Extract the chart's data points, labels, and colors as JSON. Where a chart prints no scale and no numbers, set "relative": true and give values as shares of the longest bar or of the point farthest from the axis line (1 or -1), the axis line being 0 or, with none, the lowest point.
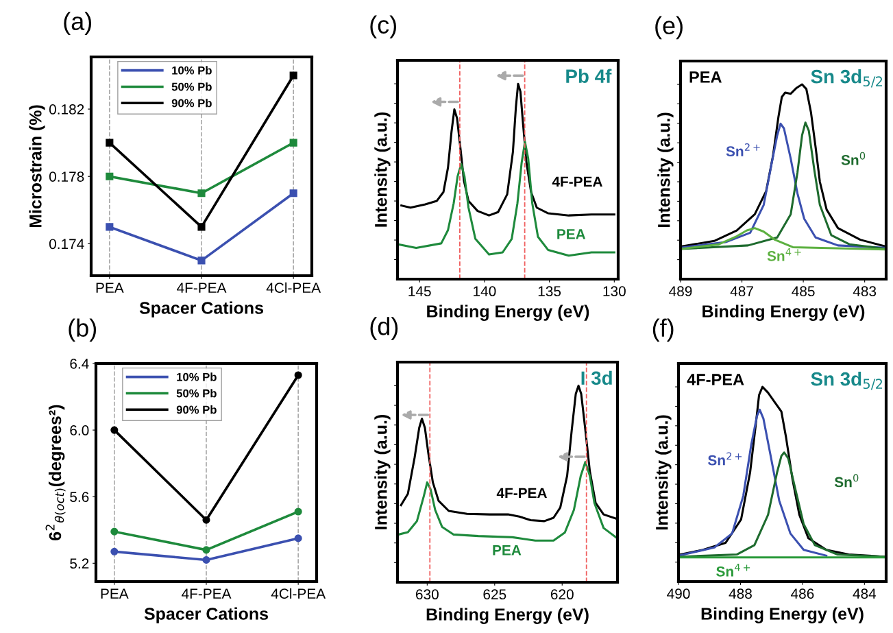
{
  "chart_data": [
    {
      "type": "line",
      "title": "(a)",
      "xlabel": "Spacer Cations",
      "ylabel": "Microstrain (%)",
      "categories": [
        "PEA",
        "4F-PEA",
        "4Cl-PEA"
      ],
      "ylim": [
        0.1721,
        0.1851
      ],
      "yticks": [
        0.174,
        0.178,
        0.182
      ],
      "grid": "x",
      "legend": "top left",
      "marker": "square",
      "series": [
        {
          "name": "10% Pb",
          "color": "#3b50b0",
          "values": [
            0.175,
            0.173,
            0.177
          ]
        },
        {
          "name": "50% Pb",
          "color": "#1e8a3c",
          "values": [
            0.178,
            0.177,
            0.18
          ]
        },
        {
          "name": "90% Pb",
          "color": "#000000",
          "values": [
            0.18,
            0.175,
            0.184
          ]
        }
      ]
    },
    {
      "type": "line",
      "title": "(c)",
      "xlabel": "Binding Energy (eV)",
      "ylabel": "Intensity (a.u.)",
      "relative": true,
      "xlim": [
        146.7,
        129.7
      ],
      "xticks": [
        145,
        140,
        135,
        130
      ],
      "tick_labels": "x",
      "annotations": [
        "Pb 4f"
      ],
      "ref_lines": [
        {
          "axis": "x",
          "value": 141.9,
          "color": "#f06060",
          "line_style": "dashed"
        },
        {
          "axis": "x",
          "value": 136.9,
          "color": "#f06060",
          "line_style": "dashed"
        }
      ],
      "series": [
        {
          "name": "4F-PEA",
          "color": "#000000",
          "x": [
            146.4,
            145.7,
            144.56,
            143.68,
            143.16,
            142.81,
            142.54,
            142.32,
            142.11,
            141.84,
            141.58,
            141.23,
            140.53,
            139.65,
            138.95,
            138.25,
            137.81,
            137.58,
            137.41,
            137.23,
            137.02,
            136.76,
            136.41,
            135.97,
            135.09,
            133.51,
            131.76,
            130.0
          ],
          "values": [
            0.377,
            0.366,
            0.383,
            0.4,
            0.446,
            0.571,
            0.754,
            0.869,
            0.823,
            0.663,
            0.503,
            0.4,
            0.349,
            0.326,
            0.343,
            0.434,
            0.651,
            0.88,
            1.0,
            0.96,
            0.789,
            0.594,
            0.446,
            0.366,
            0.337,
            0.326,
            0.331,
            0.331
          ]
        },
        {
          "name": "PEA",
          "color": "#1e8a3c",
          "x": [
            146.58,
            145.26,
            143.33,
            142.81,
            142.37,
            142.07,
            141.79,
            141.54,
            141.23,
            140.7,
            139.65,
            138.6,
            137.9,
            137.46,
            137.14,
            136.88,
            136.63,
            136.32,
            135.88,
            135.09,
            133.51,
            131.76,
            130.0
          ],
          "values": [
            0.177,
            0.16,
            0.183,
            0.251,
            0.389,
            0.526,
            0.589,
            0.526,
            0.366,
            0.206,
            0.126,
            0.137,
            0.206,
            0.389,
            0.594,
            0.703,
            0.617,
            0.389,
            0.217,
            0.149,
            0.12,
            0.137,
            0.137
          ]
        }
      ]
    },
    {
      "type": "line",
      "title": "(e)",
      "xlabel": "Binding Energy (eV)",
      "ylabel": "Intensity (a.u.)",
      "relative": true,
      "xlim": [
        489.0,
        482.3
      ],
      "xticks": [
        489,
        487,
        485,
        483
      ],
      "tick_labels": "x",
      "annotations": [
        "PEA",
        "Sn 3d$_{5/2}$"
      ],
      "series": [
        {
          "color": "#000000",
          "x": [
            489.0,
            487.9,
            487.17,
            486.58,
            486.21,
            485.99,
            485.81,
            485.7,
            485.59,
            485.41,
            485.22,
            485.04,
            484.9,
            484.75,
            484.6,
            484.46,
            484.24,
            483.87,
            483.14,
            482.3
          ],
          "values": [
            0.167,
            0.196,
            0.25,
            0.333,
            0.452,
            0.631,
            0.833,
            0.935,
            0.958,
            0.952,
            0.982,
            1.0,
            0.976,
            0.857,
            0.679,
            0.5,
            0.357,
            0.262,
            0.202,
            0.167
          ]
        },
        {
          "name": "Sn$^{2+}$",
          "color": "#3b50b0",
          "x": [
            489.0,
            487.53,
            486.73,
            486.29,
            486.03,
            485.85,
            485.74,
            485.63,
            485.41,
            485.19,
            484.97,
            484.6,
            483.87,
            482.3
          ],
          "values": [
            0.161,
            0.19,
            0.238,
            0.381,
            0.595,
            0.738,
            0.798,
            0.774,
            0.619,
            0.44,
            0.31,
            0.214,
            0.173,
            0.161
          ]
        },
        {
          "name": "Sn$^{0}$",
          "color": "#1e6b2e",
          "x": [
            489.0,
            486.8,
            485.85,
            485.41,
            485.19,
            485.04,
            484.93,
            484.82,
            484.64,
            484.46,
            484.09,
            483.5,
            482.3
          ],
          "values": [
            0.155,
            0.173,
            0.214,
            0.333,
            0.548,
            0.738,
            0.804,
            0.762,
            0.56,
            0.381,
            0.226,
            0.179,
            0.155
          ]
        },
        {
          "name": "Sn$^{4+}$",
          "color": "#5cb040",
          "x": [
            489.0,
            487.75,
            487.17,
            486.84,
            486.58,
            486.29,
            485.92,
            485.34,
            482.3
          ],
          "values": [
            0.155,
            0.179,
            0.22,
            0.25,
            0.262,
            0.244,
            0.202,
            0.164,
            0.152
          ]
        }
      ]
    },
    {
      "type": "line",
      "title": "(b)",
      "xlabel": "Spacer Cations",
      "ylabel": "6$^{2}$$_{θ(oct)}$(degrees²)",
      "categories": [
        "PEA",
        "4F-PEA",
        "4Cl-PEA"
      ],
      "ylim": [
        5.09,
        6.4
      ],
      "yticks": [
        {
          "value": 5.2,
          "label": "5.2"
        },
        {
          "value": 5.6,
          "label": "5.6"
        },
        {
          "value": 6.0,
          "label": "6.0"
        },
        {
          "value": 6.4,
          "label": "6.4"
        }
      ],
      "grid": "x",
      "legend": "top left",
      "marker": "circle",
      "series": [
        {
          "name": "10% Pb",
          "color": "#3b50b0",
          "values": [
            5.27,
            5.22,
            5.35
          ]
        },
        {
          "name": "50% Pb",
          "color": "#1e8a3c",
          "values": [
            5.39,
            5.28,
            5.51
          ]
        },
        {
          "name": "90% Pb",
          "color": "#000000",
          "values": [
            6.0,
            5.46,
            6.33
          ]
        }
      ]
    },
    {
      "type": "line",
      "title": "(d)",
      "xlabel": "Binding Energy (eV)",
      "ylabel": "Intensity (a.u.)",
      "relative": true,
      "xlim": [
        632.2,
        615.9
      ],
      "xticks": [
        630,
        625,
        620
      ],
      "tick_labels": "x",
      "annotations": [
        "I 3d"
      ],
      "ref_lines": [
        {
          "axis": "x",
          "value": 629.8,
          "color": "#f06060",
          "line_style": "dashed"
        },
        {
          "axis": "x",
          "value": 618.2,
          "color": "#f06060",
          "line_style": "dashed"
        }
      ],
      "series": [
        {
          "name": "4F-PEA",
          "color": "#000000",
          "x": [
            631.94,
            631.43,
            630.93,
            630.59,
            630.39,
            630.17,
            629.92,
            629.58,
            629.16,
            628.4,
            627.05,
            625.36,
            624.01,
            623.17,
            622.33,
            621.32,
            620.64,
            620.14,
            619.63,
            619.29,
            618.99,
            618.79,
            618.59,
            618.28,
            617.95,
            617.52,
            616.93,
            615.92
          ],
          "values": [
            0.392,
            0.45,
            0.635,
            0.786,
            0.832,
            0.786,
            0.658,
            0.508,
            0.415,
            0.363,
            0.348,
            0.345,
            0.345,
            0.334,
            0.316,
            0.311,
            0.328,
            0.38,
            0.542,
            0.774,
            0.959,
            1.0,
            0.959,
            0.774,
            0.565,
            0.403,
            0.345,
            0.322
          ]
        },
        {
          "name": "PEA",
          "color": "#1e8a3c",
          "x": [
            632.11,
            631.43,
            630.76,
            630.25,
            630.0,
            629.75,
            629.41,
            628.9,
            628.06,
            626.21,
            623.68,
            621.99,
            620.64,
            619.8,
            619.13,
            618.62,
            618.28,
            617.95,
            617.61,
            616.93,
            615.92
          ],
          "values": [
            0.243,
            0.255,
            0.311,
            0.438,
            0.508,
            0.473,
            0.368,
            0.282,
            0.243,
            0.235,
            0.229,
            0.212,
            0.212,
            0.253,
            0.368,
            0.542,
            0.612,
            0.542,
            0.403,
            0.276,
            0.224
          ]
        }
      ]
    },
    {
      "type": "line",
      "title": "(f)",
      "xlabel": "Binding Energy (eV)",
      "ylabel": "Intensity (a.u.)",
      "relative": true,
      "xlim": [
        490.0,
        483.3
      ],
      "xticks": [
        490,
        488,
        486,
        484
      ],
      "tick_labels": "x",
      "annotations": [
        "4F-PEA",
        "Sn 3d$_{5/2}$"
      ],
      "series": [
        {
          "color": "#000000",
          "x": [
            489.93,
            489.21,
            488.48,
            487.98,
            487.69,
            487.51,
            487.4,
            487.29,
            487.11,
            486.9,
            486.68,
            486.53,
            486.32,
            486.1,
            485.81,
            485.23,
            484.51,
            483.3
          ],
          "values": [
            0.139,
            0.163,
            0.199,
            0.319,
            0.56,
            0.801,
            0.958,
            1.0,
            0.97,
            0.922,
            0.873,
            0.741,
            0.524,
            0.343,
            0.223,
            0.163,
            0.139,
            0.127
          ]
        },
        {
          "name": "Sn$^{2+}$",
          "color": "#3b50b0",
          "x": [
            490.0,
            488.84,
            488.27,
            487.91,
            487.65,
            487.47,
            487.38,
            487.26,
            487.04,
            486.75,
            486.39,
            485.96,
            485.23
          ],
          "values": [
            0.133,
            0.175,
            0.247,
            0.44,
            0.705,
            0.849,
            0.883,
            0.837,
            0.657,
            0.416,
            0.247,
            0.163,
            0.133
          ]
        },
        {
          "name": "Sn$^{0}$",
          "color": "#1e6b2e",
          "x": [
            490.0,
            488.12,
            487.55,
            487.11,
            486.82,
            486.68,
            486.59,
            486.46,
            486.25,
            485.96,
            485.6,
            484.87,
            483.3
          ],
          "values": [
            0.127,
            0.139,
            0.187,
            0.343,
            0.56,
            0.645,
            0.663,
            0.633,
            0.488,
            0.295,
            0.187,
            0.139,
            0.127
          ]
        },
        {
          "name": "Sn$^{4+}$",
          "color": "#2a9a3a",
          "x": [
            490.0,
            483.3
          ],
          "values": [
            0.124,
            0.124
          ]
        }
      ]
    }
  ]
}
